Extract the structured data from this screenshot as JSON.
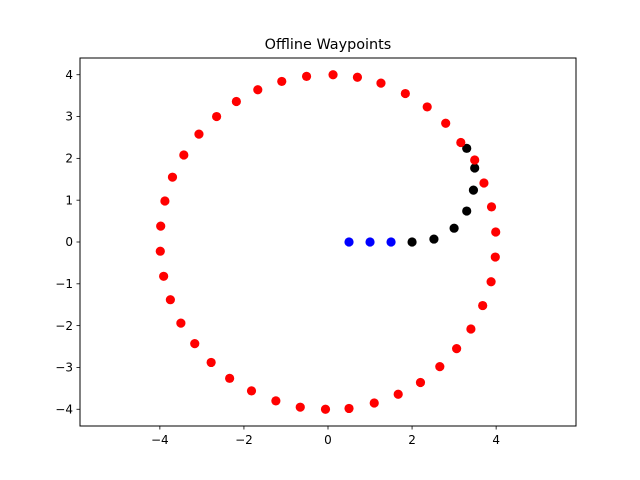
{
  "chart_data": {
    "type": "scatter",
    "title": "Offline Waypoints",
    "xlabel": "",
    "ylabel": "",
    "xlim": [
      -5.9,
      5.9
    ],
    "ylim": [
      -4.4,
      4.4
    ],
    "grid": false,
    "x_ticks": [
      -4,
      -2,
      0,
      2,
      4
    ],
    "y_ticks": [
      -4,
      -3,
      -2,
      -1,
      0,
      1,
      2,
      3,
      4
    ],
    "x_tick_labels": [
      "−4",
      "−2",
      "0",
      "2",
      "4"
    ],
    "y_tick_labels": [
      "−4",
      "−3",
      "−2",
      "−1",
      "0",
      "1",
      "2",
      "3",
      "4"
    ],
    "series": [
      {
        "color": "#0000ff",
        "points": [
          [
            0.5,
            0.0
          ],
          [
            1.0,
            0.0
          ],
          [
            1.5,
            0.0
          ]
        ]
      },
      {
        "color": "#000000",
        "points": [
          [
            2.0,
            0.0
          ],
          [
            2.52,
            0.07
          ],
          [
            3.0,
            0.33
          ],
          [
            3.3,
            0.74
          ],
          [
            3.46,
            1.24
          ],
          [
            3.49,
            1.77
          ],
          [
            3.3,
            2.24
          ]
        ]
      },
      {
        "color": "#ff0000",
        "points": [
          [
            0.12,
            4.0
          ],
          [
            0.7,
            3.94
          ],
          [
            1.26,
            3.8
          ],
          [
            1.84,
            3.55
          ],
          [
            2.36,
            3.23
          ],
          [
            2.8,
            2.84
          ],
          [
            3.16,
            2.38
          ],
          [
            3.49,
            1.96
          ],
          [
            3.71,
            1.41
          ],
          [
            3.89,
            0.84
          ],
          [
            3.99,
            0.24
          ],
          [
            3.98,
            -0.36
          ],
          [
            3.88,
            -0.95
          ],
          [
            3.68,
            -1.52
          ],
          [
            3.4,
            -2.08
          ],
          [
            3.06,
            -2.55
          ],
          [
            2.66,
            -2.98
          ],
          [
            2.2,
            -3.36
          ],
          [
            1.67,
            -3.64
          ],
          [
            1.1,
            -3.85
          ],
          [
            0.5,
            -3.98
          ],
          [
            -0.06,
            -4.0
          ],
          [
            -0.66,
            -3.95
          ],
          [
            -1.24,
            -3.8
          ],
          [
            -1.82,
            -3.56
          ],
          [
            -2.34,
            -3.26
          ],
          [
            -2.78,
            -2.88
          ],
          [
            -3.17,
            -2.43
          ],
          [
            -3.5,
            -1.94
          ],
          [
            -3.75,
            -1.38
          ],
          [
            -3.91,
            -0.82
          ],
          [
            -3.99,
            -0.22
          ],
          [
            -3.98,
            0.38
          ],
          [
            -3.88,
            0.98
          ],
          [
            -3.7,
            1.55
          ],
          [
            -3.43,
            2.08
          ],
          [
            -3.07,
            2.58
          ],
          [
            -2.65,
            3.0
          ],
          [
            -2.18,
            3.36
          ],
          [
            -1.67,
            3.64
          ],
          [
            -1.1,
            3.84
          ],
          [
            -0.51,
            3.96
          ]
        ]
      }
    ]
  }
}
